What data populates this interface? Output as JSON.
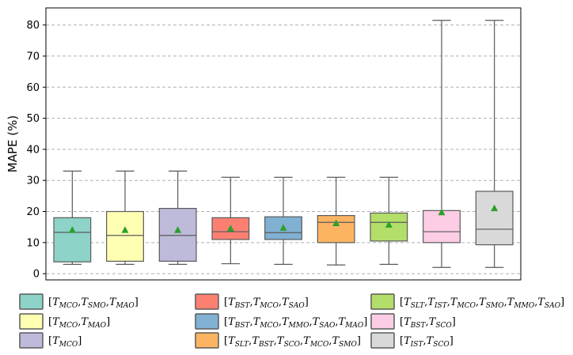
{
  "chart_data": {
    "type": "box",
    "ylabel": "MAPE (%)",
    "ylim": [
      -2,
      85.5
    ],
    "yticks": [
      0,
      10,
      20,
      30,
      40,
      50,
      60,
      70,
      80
    ],
    "grid": "horizontal-dashed",
    "legend_position": "bottom",
    "mean_marker": "triangle",
    "mean_color": "#2ca02c",
    "series": [
      {
        "name": "[T_MCO,T_SMO,T_MAO]",
        "parts": [
          [
            "T",
            "MCO"
          ],
          [
            "T",
            "SMO"
          ],
          [
            "T",
            "MAO"
          ]
        ],
        "color": "#8dd3c7",
        "whisker_low": 3,
        "q1": 3.8,
        "median": 13.3,
        "q3": 18,
        "whisker_high": 33,
        "mean": 14
      },
      {
        "name": "[T_MCO,T_MAO]",
        "parts": [
          [
            "T",
            "MCO"
          ],
          [
            "T",
            "MAO"
          ]
        ],
        "color": "#ffffb3",
        "whisker_low": 3,
        "q1": 4,
        "median": 12.3,
        "q3": 20,
        "whisker_high": 33,
        "mean": 14
      },
      {
        "name": "[T_MCO]",
        "parts": [
          [
            "T",
            "MCO"
          ]
        ],
        "color": "#bebada",
        "whisker_low": 3,
        "q1": 4,
        "median": 12.3,
        "q3": 21,
        "whisker_high": 33,
        "mean": 14
      },
      {
        "name": "[T_BST,T_MCO,T_SAO]",
        "parts": [
          [
            "T",
            "BST"
          ],
          [
            "T",
            "MCO"
          ],
          [
            "T",
            "SAO"
          ]
        ],
        "color": "#fb8072",
        "whisker_low": 3.2,
        "q1": 11,
        "median": 13.5,
        "q3": 18,
        "whisker_high": 31,
        "mean": 14.5
      },
      {
        "name": "[T_BST,T_MCO,T_MMO,T_SAO,T_MAO]",
        "parts": [
          [
            "T",
            "BST"
          ],
          [
            "T",
            "MCO"
          ],
          [
            "T",
            "MMO"
          ],
          [
            "T",
            "SAO"
          ],
          [
            "T",
            "MAO"
          ]
        ],
        "color": "#80b1d3",
        "whisker_low": 3,
        "q1": 11,
        "median": 13.2,
        "q3": 18.3,
        "whisker_high": 31,
        "mean": 14.7
      },
      {
        "name": "[T_SLT,T_BST,T_SCO,T_MCO,T_SMO]",
        "parts": [
          [
            "T",
            "SLT"
          ],
          [
            "T",
            "BST"
          ],
          [
            "T",
            "SCO"
          ],
          [
            "T",
            "MCO"
          ],
          [
            "T",
            "SMO"
          ]
        ],
        "color": "#fdb462",
        "whisker_low": 2.8,
        "q1": 10,
        "median": 16.5,
        "q3": 18.7,
        "whisker_high": 31,
        "mean": 16.2
      },
      {
        "name": "[T_SLT,T_IST,T_MCO,T_SMO,T_MMO,T_SAO]",
        "parts": [
          [
            "T",
            "SLT"
          ],
          [
            "T",
            "IST"
          ],
          [
            "T",
            "MCO"
          ],
          [
            "T",
            "SMO"
          ],
          [
            "T",
            "MMO"
          ],
          [
            "T",
            "SAO"
          ]
        ],
        "color": "#b3de69",
        "whisker_low": 3,
        "q1": 10.5,
        "median": 16.5,
        "q3": 19.5,
        "whisker_high": 31,
        "mean": 15.7
      },
      {
        "name": "[T_BST,T_SCO]",
        "parts": [
          [
            "T",
            "BST"
          ],
          [
            "T",
            "SCO"
          ]
        ],
        "color": "#fccde5",
        "whisker_low": 2,
        "q1": 10,
        "median": 13.5,
        "q3": 20.3,
        "whisker_high": 81.5,
        "mean": 19.7
      },
      {
        "name": "[T_IST,T_SCO]",
        "parts": [
          [
            "T",
            "IST"
          ],
          [
            "T",
            "SCO"
          ]
        ],
        "color": "#d9d9d9",
        "whisker_low": 2,
        "q1": 9.3,
        "median": 14.3,
        "q3": 26.5,
        "whisker_high": 81.5,
        "mean": 21
      }
    ]
  }
}
